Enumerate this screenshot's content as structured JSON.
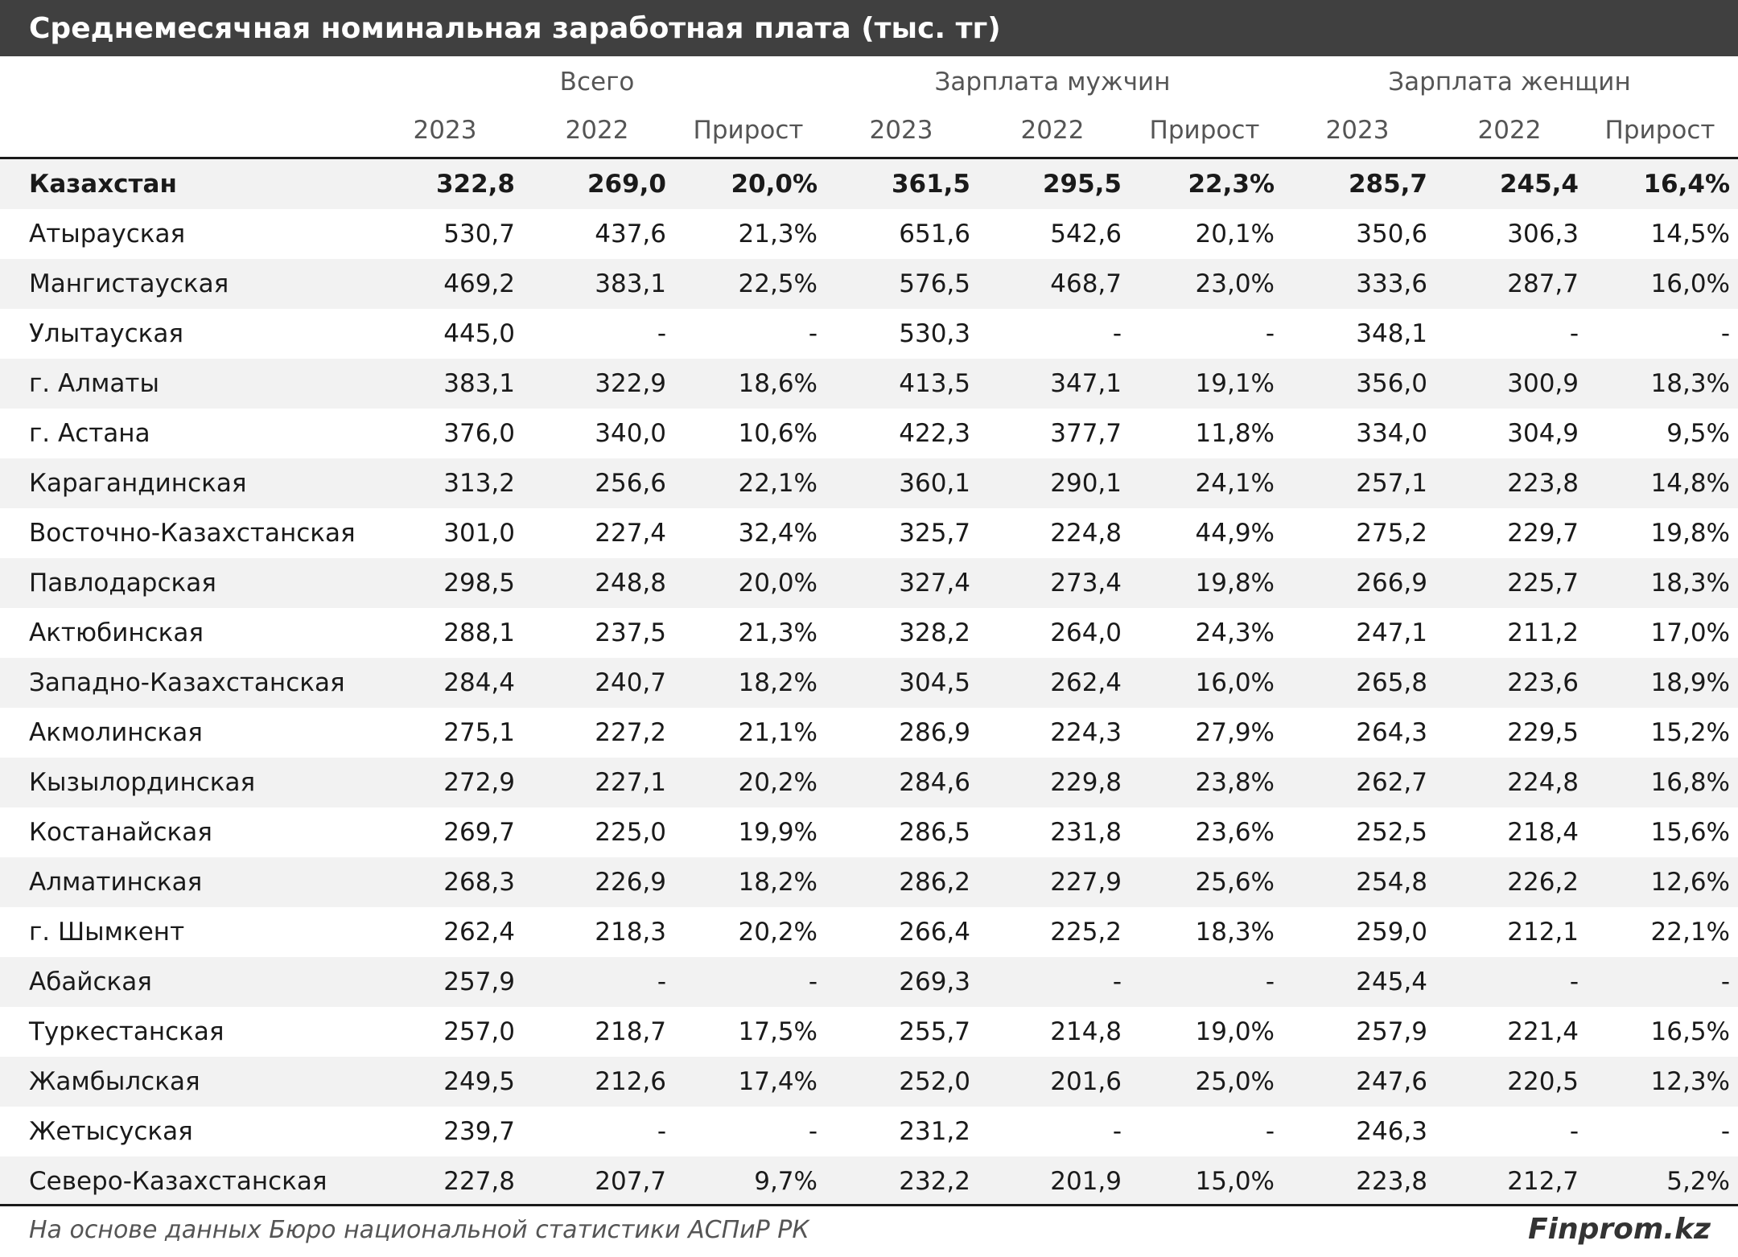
{
  "chart_data": {
    "type": "table",
    "title": "Среднемесячная номинальная заработная плата (тыс. тг)",
    "groups": [
      "Всего",
      "Зарплата мужчин",
      "Зарплата женщин"
    ],
    "subheaders": [
      "2023",
      "2022",
      "Прирост",
      "2023",
      "2022",
      "Прирост",
      "2023",
      "2022",
      "Прирост"
    ],
    "rows": [
      {
        "name": "Казахстан",
        "bold": true,
        "values": [
          "322,8",
          "269,0",
          "20,0%",
          "361,5",
          "295,5",
          "22,3%",
          "285,7",
          "245,4",
          "16,4%"
        ]
      },
      {
        "name": "Атырауская",
        "values": [
          "530,7",
          "437,6",
          "21,3%",
          "651,6",
          "542,6",
          "20,1%",
          "350,6",
          "306,3",
          "14,5%"
        ]
      },
      {
        "name": "Мангистауская",
        "values": [
          "469,2",
          "383,1",
          "22,5%",
          "576,5",
          "468,7",
          "23,0%",
          "333,6",
          "287,7",
          "16,0%"
        ]
      },
      {
        "name": "Улытауская",
        "values": [
          "445,0",
          "-",
          "-",
          "530,3",
          "-",
          "-",
          "348,1",
          "-",
          "-"
        ]
      },
      {
        "name": "г. Алматы",
        "values": [
          "383,1",
          "322,9",
          "18,6%",
          "413,5",
          "347,1",
          "19,1%",
          "356,0",
          "300,9",
          "18,3%"
        ]
      },
      {
        "name": "г. Астана",
        "values": [
          "376,0",
          "340,0",
          "10,6%",
          "422,3",
          "377,7",
          "11,8%",
          "334,0",
          "304,9",
          "9,5%"
        ]
      },
      {
        "name": "Карагандинская",
        "values": [
          "313,2",
          "256,6",
          "22,1%",
          "360,1",
          "290,1",
          "24,1%",
          "257,1",
          "223,8",
          "14,8%"
        ]
      },
      {
        "name": "Восточно-Казахстанская",
        "values": [
          "301,0",
          "227,4",
          "32,4%",
          "325,7",
          "224,8",
          "44,9%",
          "275,2",
          "229,7",
          "19,8%"
        ]
      },
      {
        "name": "Павлодарская",
        "values": [
          "298,5",
          "248,8",
          "20,0%",
          "327,4",
          "273,4",
          "19,8%",
          "266,9",
          "225,7",
          "18,3%"
        ]
      },
      {
        "name": "Актюбинская",
        "values": [
          "288,1",
          "237,5",
          "21,3%",
          "328,2",
          "264,0",
          "24,3%",
          "247,1",
          "211,2",
          "17,0%"
        ]
      },
      {
        "name": "Западно-Казахстанская",
        "values": [
          "284,4",
          "240,7",
          "18,2%",
          "304,5",
          "262,4",
          "16,0%",
          "265,8",
          "223,6",
          "18,9%"
        ]
      },
      {
        "name": "Акмолинская",
        "values": [
          "275,1",
          "227,2",
          "21,1%",
          "286,9",
          "224,3",
          "27,9%",
          "264,3",
          "229,5",
          "15,2%"
        ]
      },
      {
        "name": "Кызылординская",
        "values": [
          "272,9",
          "227,1",
          "20,2%",
          "284,6",
          "229,8",
          "23,8%",
          "262,7",
          "224,8",
          "16,8%"
        ]
      },
      {
        "name": "Костанайская",
        "values": [
          "269,7",
          "225,0",
          "19,9%",
          "286,5",
          "231,8",
          "23,6%",
          "252,5",
          "218,4",
          "15,6%"
        ]
      },
      {
        "name": "Алматинская",
        "values": [
          "268,3",
          "226,9",
          "18,2%",
          "286,2",
          "227,9",
          "25,6%",
          "254,8",
          "226,2",
          "12,6%"
        ]
      },
      {
        "name": "г. Шымкент",
        "values": [
          "262,4",
          "218,3",
          "20,2%",
          "266,4",
          "225,2",
          "18,3%",
          "259,0",
          "212,1",
          "22,1%"
        ]
      },
      {
        "name": "Абайская",
        "values": [
          "257,9",
          "-",
          "-",
          "269,3",
          "-",
          "-",
          "245,4",
          "-",
          "-"
        ]
      },
      {
        "name": "Туркестанская",
        "values": [
          "257,0",
          "218,7",
          "17,5%",
          "255,7",
          "214,8",
          "19,0%",
          "257,9",
          "221,4",
          "16,5%"
        ]
      },
      {
        "name": "Жамбылская",
        "values": [
          "249,5",
          "212,6",
          "17,4%",
          "252,0",
          "201,6",
          "25,0%",
          "247,6",
          "220,5",
          "12,3%"
        ]
      },
      {
        "name": "Жетысуская",
        "values": [
          "239,7",
          "-",
          "-",
          "231,2",
          "-",
          "-",
          "246,3",
          "-",
          "-"
        ]
      },
      {
        "name": "Северо-Казахстанская",
        "values": [
          "227,8",
          "207,7",
          "9,7%",
          "232,2",
          "201,9",
          "15,0%",
          "223,8",
          "212,7",
          "5,2%"
        ]
      }
    ],
    "source": "На основе данных Бюро национальной статистики АСПиР РК",
    "brand": "Finprom.kz"
  }
}
